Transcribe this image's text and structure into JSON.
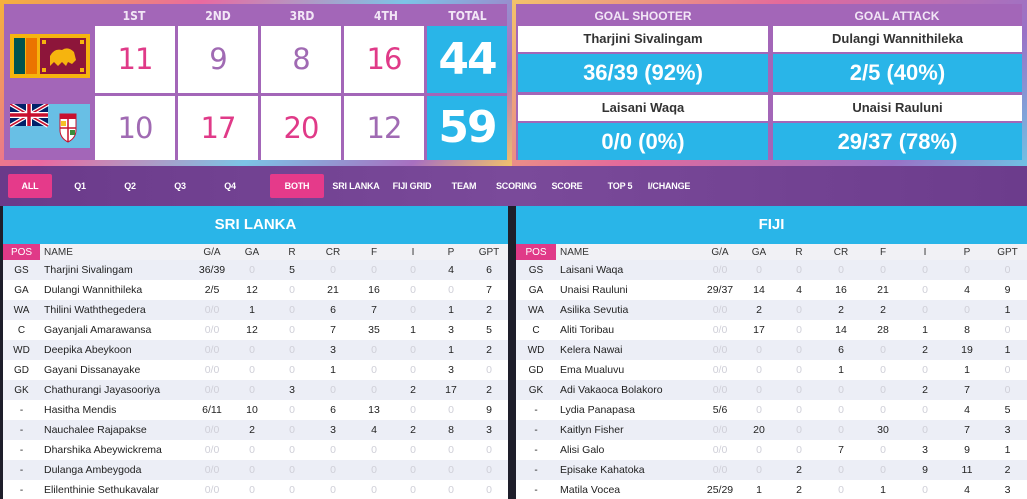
{
  "scoreboard": {
    "quarters": [
      "1ST",
      "2ND",
      "3RD",
      "4TH"
    ],
    "total_label": "TOTAL",
    "teams": [
      {
        "flag": "sri-lanka-flag",
        "scores": [
          "11",
          "9",
          "8",
          "16"
        ],
        "total": "44"
      },
      {
        "flag": "fiji-flag",
        "scores": [
          "10",
          "17",
          "20",
          "12"
        ],
        "total": "59"
      }
    ]
  },
  "goals": {
    "shooter_label": "GOAL SHOOTER",
    "attack_label": "GOAL ATTACK",
    "rows": [
      {
        "gs_name": "Tharjini Sivalingam",
        "gs_stat": "36/39 (92%)",
        "ga_name": "Dulangi Wannithileka",
        "ga_stat": "2/5 (40%)"
      },
      {
        "gs_name": "Laisani Waqa",
        "gs_stat": "0/0 (0%)",
        "ga_name": "Unaisi Rauluni",
        "ga_stat": "29/37 (78%)"
      }
    ]
  },
  "filters": [
    "ALL",
    "Q1",
    "Q2",
    "Q3",
    "Q4",
    "BOTH TEAMS",
    "SRI LANKA GRID",
    "FIJI GRID",
    "TEAM STATS",
    "SCORING",
    "SCORE FLOW",
    "TOP 5",
    "I/CHANGE"
  ],
  "columns": [
    "POS",
    "NAME",
    "G/A",
    "GA",
    "R",
    "CR",
    "F",
    "I",
    "P",
    "GPT"
  ],
  "sri_lanka": {
    "title": "SRI LANKA",
    "rows": [
      [
        "GS",
        "Tharjini Sivalingam",
        "36/39",
        "0",
        "5",
        "0",
        "0",
        "0",
        "4",
        "6"
      ],
      [
        "GA",
        "Dulangi Wannithileka",
        "2/5",
        "12",
        "0",
        "21",
        "16",
        "0",
        "0",
        "7"
      ],
      [
        "WA",
        "Thilini Waththegedera",
        "0/0",
        "1",
        "0",
        "6",
        "7",
        "0",
        "1",
        "2"
      ],
      [
        "C",
        "Gayanjali Amarawansa",
        "0/0",
        "12",
        "0",
        "7",
        "35",
        "1",
        "3",
        "5"
      ],
      [
        "WD",
        "Deepika Abeykoon",
        "0/0",
        "0",
        "0",
        "3",
        "0",
        "0",
        "1",
        "2"
      ],
      [
        "GD",
        "Gayani Dissanayake",
        "0/0",
        "0",
        "0",
        "1",
        "0",
        "0",
        "3",
        "0"
      ],
      [
        "GK",
        "Chathurangi Jayasooriya",
        "0/0",
        "0",
        "3",
        "0",
        "0",
        "2",
        "17",
        "2"
      ],
      [
        "-",
        "Hasitha Mendis",
        "6/11",
        "10",
        "0",
        "6",
        "13",
        "0",
        "0",
        "9"
      ],
      [
        "-",
        "Nauchalee Rajapakse",
        "0/0",
        "2",
        "0",
        "3",
        "4",
        "2",
        "8",
        "3"
      ],
      [
        "-",
        "Dharshika Abeywickrema",
        "0/0",
        "0",
        "0",
        "0",
        "0",
        "0",
        "0",
        "0"
      ],
      [
        "-",
        "Dulanga Ambeygoda",
        "0/0",
        "0",
        "0",
        "0",
        "0",
        "0",
        "0",
        "0"
      ],
      [
        "-",
        "Elilenthinie Sethukavalar",
        "0/0",
        "0",
        "0",
        "0",
        "0",
        "0",
        "0",
        "0"
      ]
    ]
  },
  "fiji": {
    "title": "FIJI",
    "rows": [
      [
        "GS",
        "Laisani Waqa",
        "0/0",
        "0",
        "0",
        "0",
        "0",
        "0",
        "0",
        "0"
      ],
      [
        "GA",
        "Unaisi Rauluni",
        "29/37",
        "14",
        "4",
        "16",
        "21",
        "0",
        "4",
        "9"
      ],
      [
        "WA",
        "Asilika Sevutia",
        "0/0",
        "2",
        "0",
        "2",
        "2",
        "0",
        "0",
        "1"
      ],
      [
        "C",
        "Aliti Toribau",
        "0/0",
        "17",
        "0",
        "14",
        "28",
        "1",
        "8",
        "0"
      ],
      [
        "WD",
        "Kelera Nawai",
        "0/0",
        "0",
        "0",
        "6",
        "0",
        "2",
        "19",
        "1"
      ],
      [
        "GD",
        "Ema Mualuvu",
        "0/0",
        "0",
        "0",
        "1",
        "0",
        "0",
        "1",
        "0"
      ],
      [
        "GK",
        "Adi Vakaoca Bolakoro",
        "0/0",
        "0",
        "0",
        "0",
        "0",
        "2",
        "7",
        "0"
      ],
      [
        "-",
        "Lydia Panapasa",
        "5/6",
        "0",
        "0",
        "0",
        "0",
        "0",
        "4",
        "5"
      ],
      [
        "-",
        "Kaitlyn Fisher",
        "0/0",
        "20",
        "0",
        "0",
        "30",
        "0",
        "7",
        "3"
      ],
      [
        "-",
        "Alisi Galo",
        "0/0",
        "0",
        "0",
        "7",
        "0",
        "3",
        "9",
        "1"
      ],
      [
        "-",
        "Episake Kahatoka",
        "0/0",
        "0",
        "2",
        "0",
        "0",
        "9",
        "11",
        "2"
      ],
      [
        "-",
        "Matila Vocea",
        "25/29",
        "1",
        "2",
        "0",
        "1",
        "0",
        "4",
        "3"
      ]
    ]
  },
  "colors": {
    "pink": "#e03a88",
    "blue": "#29b5e8",
    "purple": "#a366b8"
  }
}
